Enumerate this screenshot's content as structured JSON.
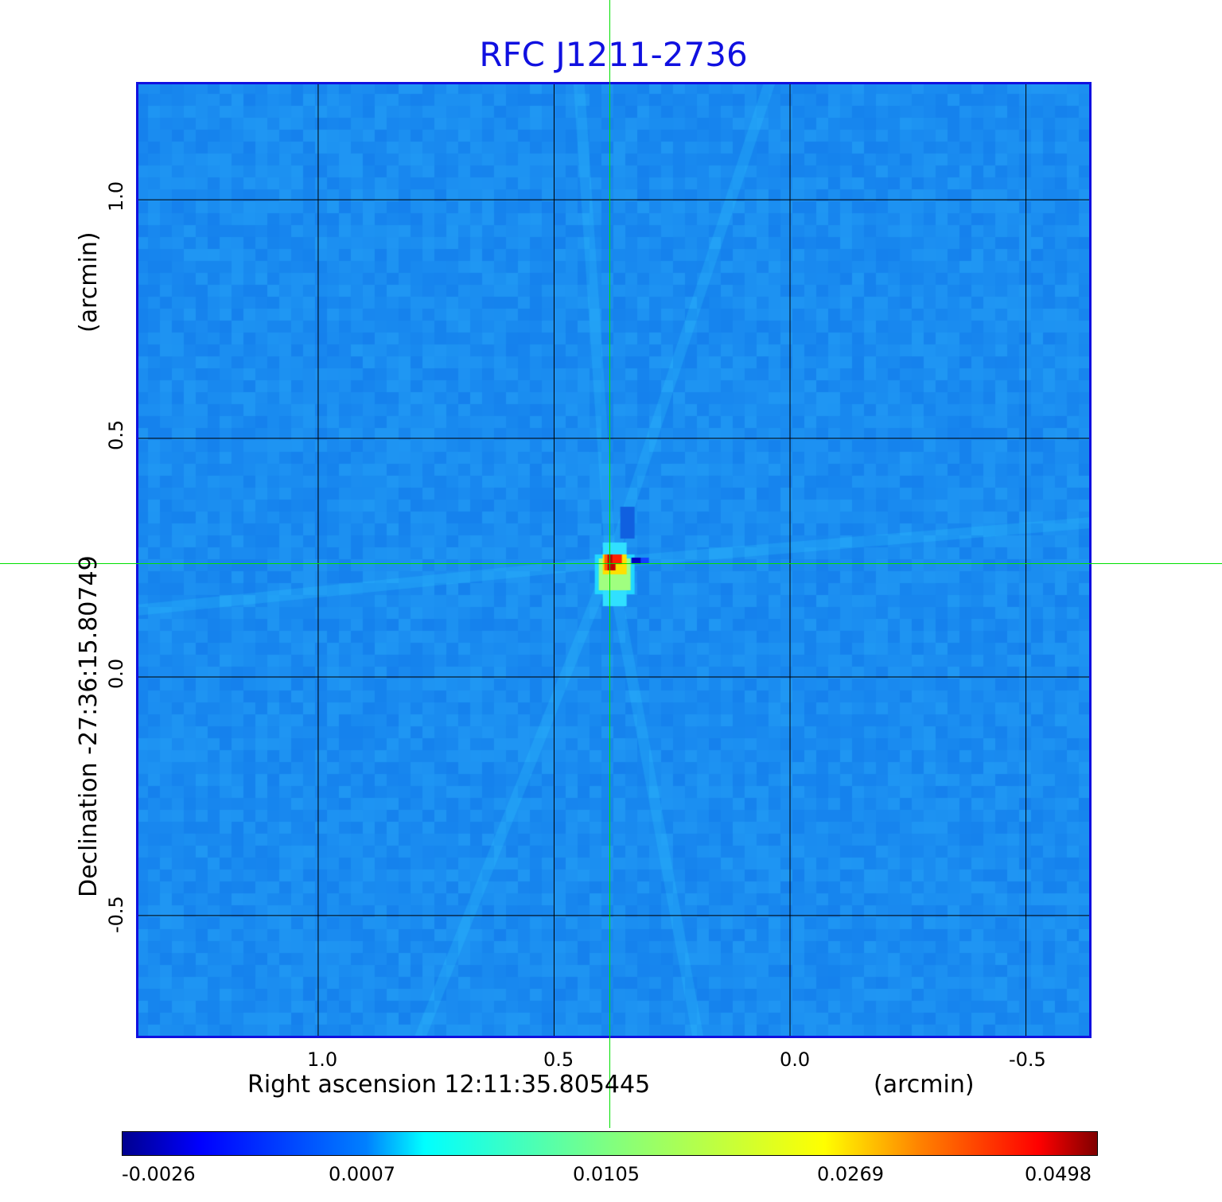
{
  "chart_data": {
    "type": "heatmap",
    "title": "RFC J1211-2736",
    "xlabel": "Right ascension  12:11:35.805445",
    "xunit": "(arcmin)",
    "ylabel": "Declination  -27:36:15.80749",
    "yunit": "(arcmin)",
    "xlim": [
      1.386,
      -0.639
    ],
    "ylim": [
      -0.757,
      1.247
    ],
    "x_ticks": [
      "1.0",
      "0.5",
      "0.0",
      "-0.5"
    ],
    "x_tick_values": [
      1.0,
      0.5,
      0.0,
      -0.5
    ],
    "y_ticks": [
      "1.0",
      "0.5",
      "0.0",
      "-0.5"
    ],
    "y_tick_values": [
      1.0,
      0.5,
      0.0,
      -0.5
    ],
    "grid": true,
    "crosshair": {
      "x": 0.38,
      "y": 0.237,
      "color": "#00e000"
    },
    "source_peak": {
      "x": 0.38,
      "y": 0.24,
      "value": 0.0498
    },
    "colormap": "jet",
    "colorbar": {
      "ticks": [
        "-0.0026",
        "0.0007",
        "0.0105",
        "0.0269",
        "0.0498"
      ],
      "placement": "bottom"
    },
    "colors": {
      "title": "#1010e0",
      "frame": "#1010e0",
      "background_level": "#1a88f0"
    }
  }
}
